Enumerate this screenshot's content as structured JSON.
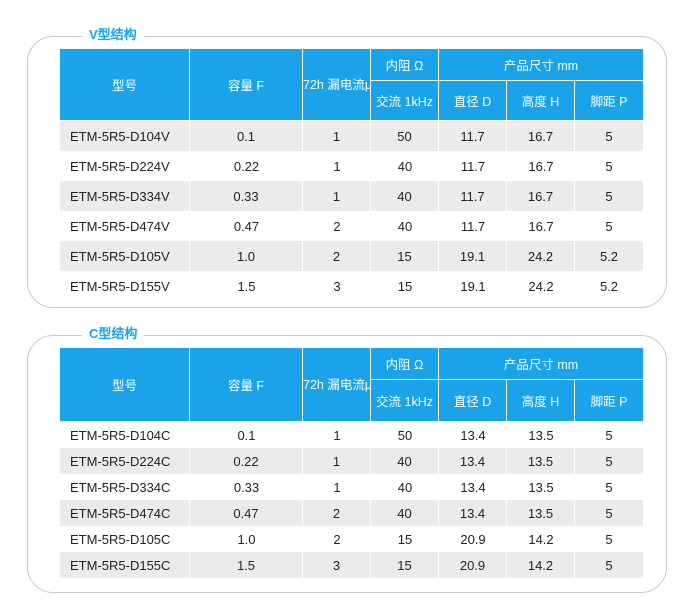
{
  "headers": {
    "model": "型号",
    "capacity": "容量 F",
    "leakage": "72h 漏电流μA",
    "resistance": "内阻 Ω",
    "resistance_sub": "交流 1kHz",
    "size": "产品尺寸 mm",
    "diameter": "直径 D",
    "height": "高度 H",
    "pitch": "脚距 P"
  },
  "v": {
    "title": "V型结构",
    "rows": [
      {
        "model": "ETM-5R5-D104V",
        "cap": "0.1",
        "leak": "1",
        "res": "50",
        "d": "11.7",
        "h": "16.7",
        "p": "5"
      },
      {
        "model": "ETM-5R5-D224V",
        "cap": "0.22",
        "leak": "1",
        "res": "40",
        "d": "11.7",
        "h": "16.7",
        "p": "5"
      },
      {
        "model": "ETM-5R5-D334V",
        "cap": "0.33",
        "leak": "1",
        "res": "40",
        "d": "11.7",
        "h": "16.7",
        "p": "5"
      },
      {
        "model": "ETM-5R5-D474V",
        "cap": "0.47",
        "leak": "2",
        "res": "40",
        "d": "11.7",
        "h": "16.7",
        "p": "5"
      },
      {
        "model": "ETM-5R5-D105V",
        "cap": "1.0",
        "leak": "2",
        "res": "15",
        "d": "19.1",
        "h": "24.2",
        "p": "5.2"
      },
      {
        "model": "ETM-5R5-D155V",
        "cap": "1.5",
        "leak": "3",
        "res": "15",
        "d": "19.1",
        "h": "24.2",
        "p": "5.2"
      }
    ]
  },
  "c": {
    "title": "C型结构",
    "rows": [
      {
        "model": "ETM-5R5-D104C",
        "cap": "0.1",
        "leak": "1",
        "res": "50",
        "d": "13.4",
        "h": "13.5",
        "p": "5"
      },
      {
        "model": "ETM-5R5-D224C",
        "cap": "0.22",
        "leak": "1",
        "res": "40",
        "d": "13.4",
        "h": "13.5",
        "p": "5"
      },
      {
        "model": "ETM-5R5-D334C",
        "cap": "0.33",
        "leak": "1",
        "res": "40",
        "d": "13.4",
        "h": "13.5",
        "p": "5"
      },
      {
        "model": "ETM-5R5-D474C",
        "cap": "0.47",
        "leak": "2",
        "res": "40",
        "d": "13.4",
        "h": "13.5",
        "p": "5"
      },
      {
        "model": "ETM-5R5-D105C",
        "cap": "1.0",
        "leak": "2",
        "res": "15",
        "d": "20.9",
        "h": "14.2",
        "p": "5"
      },
      {
        "model": "ETM-5R5-D155C",
        "cap": "1.5",
        "leak": "3",
        "res": "15",
        "d": "20.9",
        "h": "14.2",
        "p": "5"
      }
    ]
  }
}
